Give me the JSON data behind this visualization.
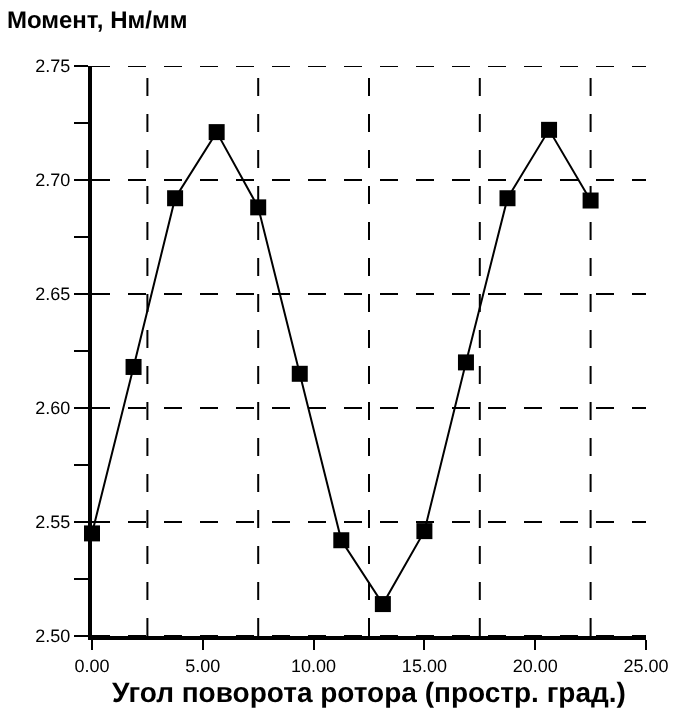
{
  "chart_data": {
    "type": "line",
    "title": "Момент, Нм/мм",
    "xlabel": "Угол поворота ротора (простр. град.)",
    "x": [
      0,
      1.875,
      3.75,
      5.625,
      7.5,
      9.375,
      11.25,
      13.125,
      15,
      16.875,
      18.75,
      20.625,
      22.5
    ],
    "series": [
      {
        "color": "#000000",
        "values": [
          2.545,
          2.618,
          2.692,
          2.721,
          2.688,
          2.615,
          2.542,
          2.514,
          2.546,
          2.62,
          2.692,
          2.722,
          2.691
        ]
      }
    ],
    "xlim": [
      0,
      25
    ],
    "ylim": [
      2.5,
      2.75
    ],
    "xticks": [
      {
        "value": 0,
        "label": "0.00"
      },
      {
        "value": 5,
        "label": "5.00"
      },
      {
        "value": 10,
        "label": "10.00"
      },
      {
        "value": 15,
        "label": "15.00"
      },
      {
        "value": 20,
        "label": "20.00"
      },
      {
        "value": 25,
        "label": "25.00"
      }
    ],
    "yticks": [
      {
        "value": 2.5,
        "label": "2.50"
      },
      {
        "value": 2.525,
        "label": null
      },
      {
        "value": 2.55,
        "label": "2.55"
      },
      {
        "value": 2.575,
        "label": null
      },
      {
        "value": 2.6,
        "label": "2.60"
      },
      {
        "value": 2.625,
        "label": null
      },
      {
        "value": 2.65,
        "label": "2.65"
      },
      {
        "value": 2.675,
        "label": null
      },
      {
        "value": 2.7,
        "label": "2.70"
      },
      {
        "value": 2.725,
        "label": null
      },
      {
        "value": 2.75,
        "label": "2.75"
      }
    ],
    "ref_lines": [
      {
        "axis": "x",
        "value": 2.5,
        "line_style": "dashed"
      },
      {
        "axis": "x",
        "value": 7.5,
        "line_style": "dashed"
      },
      {
        "axis": "x",
        "value": 12.5,
        "line_style": "dashed"
      },
      {
        "axis": "x",
        "value": 17.5,
        "line_style": "dashed"
      },
      {
        "axis": "x",
        "value": 22.5,
        "line_style": "dashed"
      }
    ],
    "grid": "y",
    "marker": "square",
    "line_style": "solid"
  }
}
